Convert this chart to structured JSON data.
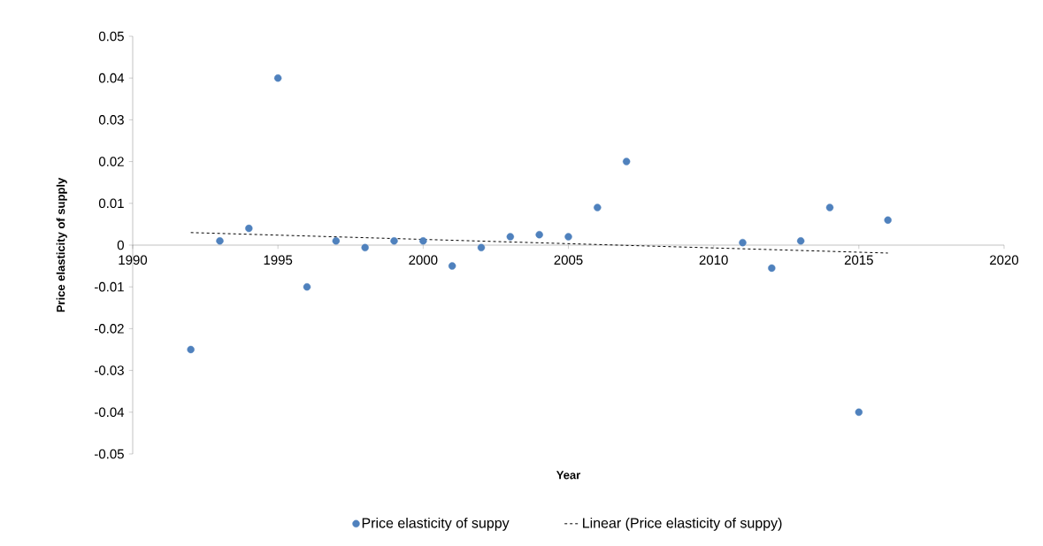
{
  "chart_data": {
    "type": "scatter",
    "xlabel": "Year",
    "ylabel": "Price elasticity of supply",
    "xlim": [
      1990,
      2020
    ],
    "ylim": [
      -0.05,
      0.05
    ],
    "xticks": [
      1990,
      1995,
      2000,
      2005,
      2010,
      2015,
      2020
    ],
    "yticks": [
      -0.05,
      -0.04,
      -0.03,
      -0.02,
      -0.01,
      0,
      0.01,
      0.02,
      0.03,
      0.04,
      0.05
    ],
    "legend": "bottom",
    "series": [
      {
        "name": "Price elasticity of suppy",
        "marker": "circle",
        "color": "#4f81bd",
        "x": [
          1992,
          1993,
          1994,
          1995,
          1996,
          1997,
          1998,
          1999,
          2000,
          2001,
          2002,
          2003,
          2004,
          2005,
          2006,
          2007,
          2011,
          2012,
          2013,
          2014,
          2015,
          2016
        ],
        "values": [
          -0.025,
          0.001,
          0.004,
          0.04,
          -0.01,
          0.001,
          -0.0006,
          0.001,
          0.001,
          -0.005,
          -0.0006,
          0.002,
          0.0025,
          0.002,
          0.009,
          0.02,
          0.0006,
          -0.0055,
          0.001,
          0.009,
          -0.04,
          0.006
        ]
      },
      {
        "name": "Linear (Price elasticity of suppy)",
        "type": "line",
        "line_style": "dashed",
        "color": "#000000",
        "x": [
          1992,
          2016
        ],
        "values": [
          0.003,
          -0.0019
        ]
      }
    ]
  }
}
